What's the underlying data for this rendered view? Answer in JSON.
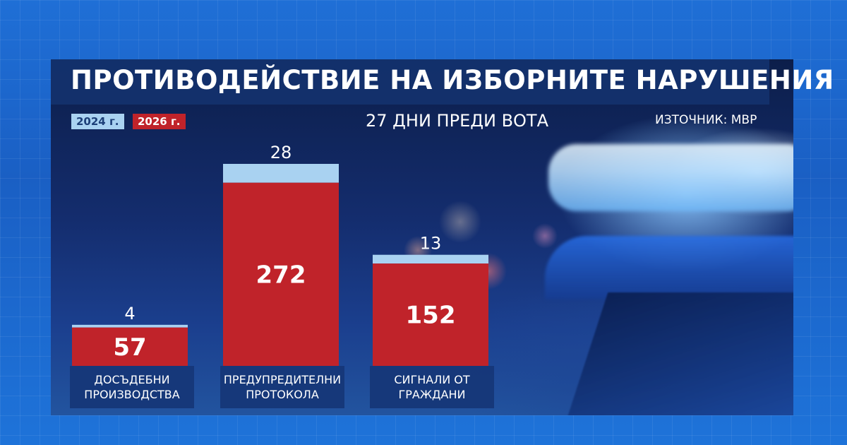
{
  "title": "ПРОТИВОДЕЙСТВИЕ НА ИЗБОРНИТЕ НАРУШЕНИЯ",
  "subtitle": "27 ДНИ ПРЕДИ ВОТА",
  "source": "ИЗТОЧНИК: МВР",
  "colors": {
    "series_2024": "#a9d2f1",
    "series_2026": "#c0232a"
  },
  "chart_data": {
    "type": "bar",
    "title": "ПРОТИВОДЕЙСТВИЕ НА ИЗБОРНИТЕ НАРУШЕНИЯ",
    "categories": [
      "ДОСЪДЕБНИ\nПРОИЗВОДСТВА",
      "ПРЕДУПРЕДИТЕЛНИ\nПРОТОКОЛА",
      "СИГНАЛИ ОТ\nГРАЖДАНИ"
    ],
    "series": [
      {
        "name": "2024 г.",
        "values": [
          4,
          28,
          13
        ]
      },
      {
        "name": "2026 г.",
        "values": [
          57,
          272,
          152
        ]
      }
    ],
    "stacked": true,
    "legend": "top-left",
    "grid": false
  }
}
